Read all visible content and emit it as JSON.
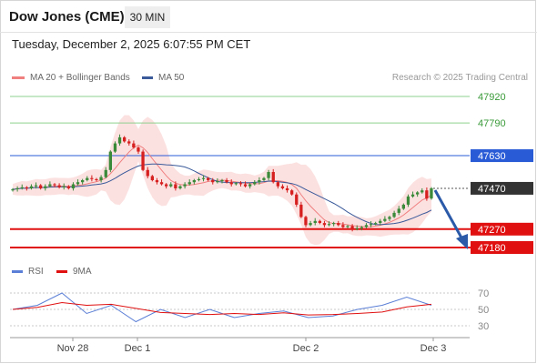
{
  "header": {
    "title": "Dow Jones (CME)",
    "interval": "30 MIN",
    "timestamp": "Tuesday, December 2, 2025 6:07:55 PM CET"
  },
  "legend": {
    "items": [
      {
        "label": "MA 20 + Bollinger Bands",
        "color": "#f08080"
      },
      {
        "label": "MA 50",
        "color": "#3a5a9a"
      }
    ],
    "credit": "Research © 2025 Trading Central"
  },
  "colors": {
    "up": "#3a8a3a",
    "down": "#d62020",
    "resistance": "#8ed08e",
    "pivot": "#2a5bd7",
    "support": "#e01010",
    "current": "#333333",
    "ma20": "#f08080",
    "ma50": "#3a5a9a",
    "band": "#fbd7d7",
    "rsi": "#5b7fd6",
    "rsi_ma": "#e01010"
  },
  "levels": [
    {
      "value": "47920",
      "kind": "resistance"
    },
    {
      "value": "47790",
      "kind": "resistance"
    },
    {
      "value": "47630",
      "kind": "pivot"
    },
    {
      "value": "47470",
      "kind": "current"
    },
    {
      "value": "47270",
      "kind": "support"
    },
    {
      "value": "47180",
      "kind": "support"
    }
  ],
  "rsi_panel": {
    "legend": [
      {
        "label": "RSI",
        "color": "#5b7fd6"
      },
      {
        "label": "9MA",
        "color": "#e01010"
      }
    ],
    "ticks": [
      "70",
      "50",
      "30"
    ]
  },
  "x_axis": {
    "ticks": [
      "Nov 28",
      "Dec 1",
      "Dec 2",
      "Dec 3"
    ]
  },
  "chart_data": {
    "type": "candlestick",
    "title": "Dow Jones (CME)",
    "timeframe": "30 MIN",
    "y_range": [
      47160,
      47950
    ],
    "current_price": 47470,
    "scenario": "bearish, targets 47270 then 47180",
    "ohlc_closes_approx": [
      47465,
      47470,
      47475,
      47470,
      47480,
      47485,
      47470,
      47480,
      47490,
      47485,
      47475,
      47480,
      47470,
      47490,
      47500,
      47510,
      47520,
      47515,
      47510,
      47525,
      47560,
      47650,
      47690,
      47720,
      47700,
      47690,
      47670,
      47650,
      47560,
      47530,
      47510,
      47500,
      47490,
      47480,
      47490,
      47470,
      47480,
      47490,
      47500,
      47510,
      47515,
      47520,
      47510,
      47500,
      47505,
      47510,
      47500,
      47490,
      47495,
      47490,
      47480,
      47490,
      47500,
      47510,
      47520,
      47550,
      47500,
      47480,
      47470,
      47460,
      47440,
      47390,
      47330,
      47290,
      47300,
      47310,
      47300,
      47290,
      47295,
      47300,
      47290,
      47280,
      47285,
      47270,
      47275,
      47280,
      47290,
      47295,
      47300,
      47310,
      47320,
      47330,
      47350,
      47370,
      47390,
      47430,
      47440,
      47450,
      47460,
      47420,
      47470
    ],
    "rsi": {
      "values_approx": [
        50,
        55,
        70,
        45,
        55,
        35,
        50,
        40,
        50,
        40,
        45,
        48,
        40,
        42,
        50,
        55,
        65,
        55
      ]
    }
  }
}
